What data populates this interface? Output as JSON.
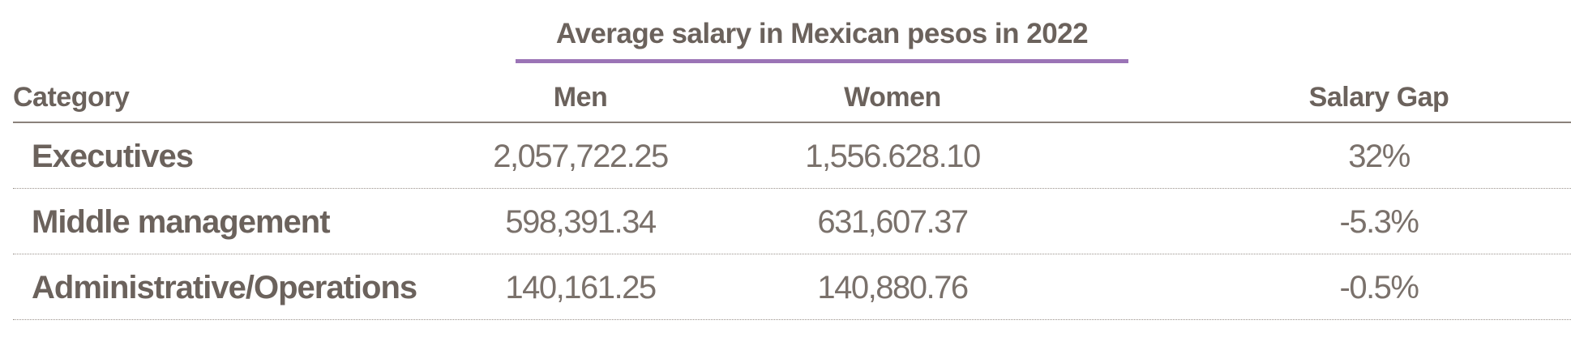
{
  "table": {
    "group_header": "Average salary in Mexican pesos in 2022",
    "headers": {
      "category": "Category",
      "men": "Men",
      "women": "Women",
      "gap": "Salary Gap"
    },
    "rows": [
      {
        "category": "Executives",
        "men": "2,057,722.25",
        "women": "1,556.628.10",
        "gap": "32%"
      },
      {
        "category": "Middle management",
        "men": "598,391.34",
        "women": "631,607.37",
        "gap": "-5.3%"
      },
      {
        "category": "Administrative/Operations",
        "men": "140,161.25",
        "women": "140,880.76",
        "gap": "-0.5%"
      }
    ],
    "colors": {
      "text": "#6b625c",
      "group_rule": "#9b74b6",
      "header_rule": "#8a817b"
    }
  }
}
